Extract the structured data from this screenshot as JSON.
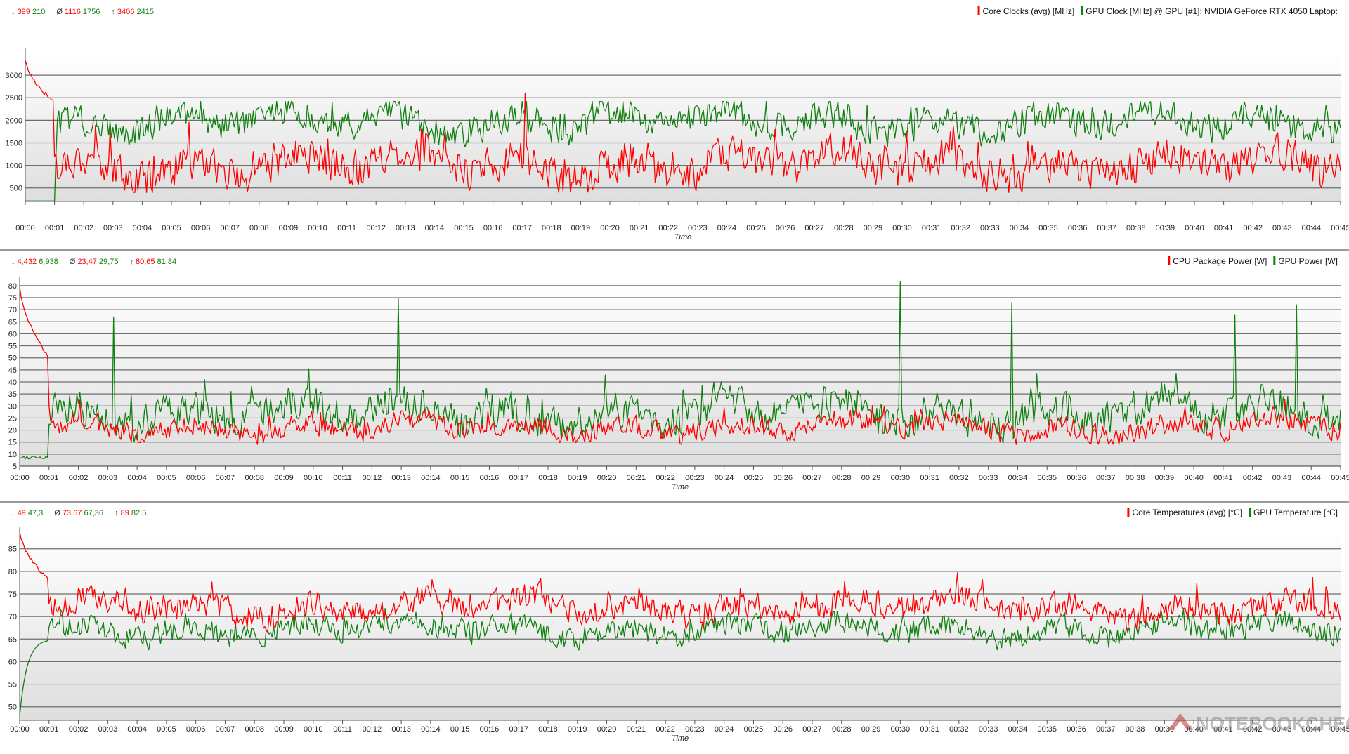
{
  "colors": {
    "red": "#ff0000",
    "green": "#108010",
    "grid": "#6e6e6e",
    "separator": "#9a9a9a"
  },
  "watermark": "NOTEBOOKCHECK",
  "chart_data": [
    {
      "type": "line",
      "xlabel": "Time",
      "ylabel": "",
      "xlim": [
        0,
        45
      ],
      "ylim": [
        200,
        3500
      ],
      "y_ticks": [
        500,
        1000,
        1500,
        2000,
        2500,
        3000
      ],
      "x_ticks": [
        "00:00",
        "00:01",
        "00:02",
        "00:03",
        "00:04",
        "00:05",
        "00:06",
        "00:07",
        "00:08",
        "00:09",
        "00:10",
        "00:11",
        "00:12",
        "00:13",
        "00:14",
        "00:15",
        "00:16",
        "00:17",
        "00:18",
        "00:19",
        "00:20",
        "00:21",
        "00:22",
        "00:23",
        "00:24",
        "00:25",
        "00:26",
        "00:27",
        "00:28",
        "00:29",
        "00:30",
        "00:31",
        "00:32",
        "00:33",
        "00:34",
        "00:35",
        "00:36",
        "00:37",
        "00:38",
        "00:39",
        "00:40",
        "00:41",
        "00:42",
        "00:43",
        "00:44",
        "00:45"
      ],
      "stats": {
        "min": [
          "399",
          "210"
        ],
        "avg": [
          "1116",
          "1756"
        ],
        "max": [
          "3406",
          "2415"
        ]
      },
      "series": [
        {
          "name": "Core Clocks (avg) [MHz]",
          "color": "red",
          "start": 3350,
          "decay_to": 2400,
          "base": 1000,
          "spread": 550,
          "min": 399,
          "max": 2600,
          "spikes": [
            [
              17.1,
              2600
            ]
          ]
        },
        {
          "name": "GPU Clock [MHz] @ GPU [#1]: NVIDIA GeForce RTX 4050 Laptop:",
          "color": "green",
          "start": 210,
          "idle_until": 1.05,
          "base": 1950,
          "spread": 450,
          "min": 450,
          "max": 2415
        }
      ]
    },
    {
      "type": "line",
      "xlabel": "Time",
      "ylabel": "",
      "xlim": [
        0,
        45
      ],
      "ylim": [
        5,
        82
      ],
      "y_ticks": [
        5,
        10,
        15,
        20,
        25,
        30,
        35,
        40,
        45,
        50,
        55,
        60,
        65,
        70,
        75,
        80
      ],
      "x_ticks": [
        "00:00",
        "00:01",
        "00:02",
        "00:03",
        "00:04",
        "00:05",
        "00:06",
        "00:07",
        "00:08",
        "00:09",
        "00:10",
        "00:11",
        "00:12",
        "00:13",
        "00:14",
        "00:15",
        "00:16",
        "00:17",
        "00:18",
        "00:19",
        "00:20",
        "00:21",
        "00:22",
        "00:23",
        "00:24",
        "00:25",
        "00:26",
        "00:27",
        "00:28",
        "00:29",
        "00:30",
        "00:31",
        "00:32",
        "00:33",
        "00:34",
        "00:35",
        "00:36",
        "00:37",
        "00:38",
        "00:39",
        "00:40",
        "00:41",
        "00:42",
        "00:43",
        "00:44",
        "00:45"
      ],
      "stats": {
        "min": [
          "4,432",
          "6,938"
        ],
        "avg": [
          "23,47",
          "29,75"
        ],
        "max": [
          "80,65",
          "81,84"
        ]
      },
      "series": [
        {
          "name": "CPU Package Power [W]",
          "color": "red",
          "start": 80,
          "decay_to": 50,
          "base": 21,
          "spread": 6,
          "min": 14,
          "max": 48
        },
        {
          "name": "GPU Power [W]",
          "color": "green",
          "start": 8,
          "idle_until": 1.0,
          "base": 27,
          "spread": 10,
          "min": 14,
          "max": 81.8,
          "spikes": [
            [
              12.9,
              75
            ],
            [
              30.0,
              81.8
            ],
            [
              33.8,
              73
            ],
            [
              43.5,
              72
            ],
            [
              3.2,
              67
            ],
            [
              41.4,
              68
            ]
          ]
        }
      ]
    },
    {
      "type": "line",
      "xlabel": "Time",
      "ylabel": "",
      "xlim": [
        0,
        45
      ],
      "ylim": [
        47,
        89
      ],
      "y_ticks": [
        50,
        55,
        60,
        65,
        70,
        75,
        80,
        85
      ],
      "x_ticks": [
        "00:00",
        "00:01",
        "00:02",
        "00:03",
        "00:04",
        "00:05",
        "00:06",
        "00:07",
        "00:08",
        "00:09",
        "00:10",
        "00:11",
        "00:12",
        "00:13",
        "00:14",
        "00:15",
        "00:16",
        "00:17",
        "00:18",
        "00:19",
        "00:20",
        "00:21",
        "00:22",
        "00:23",
        "00:24",
        "00:25",
        "00:26",
        "00:27",
        "00:28",
        "00:29",
        "00:30",
        "00:31",
        "00:32",
        "00:33",
        "00:34",
        "00:35",
        "00:36",
        "00:37",
        "00:38",
        "00:39",
        "00:40",
        "00:41",
        "00:42",
        "00:43",
        "00:44",
        "00:45"
      ],
      "stats": {
        "min": [
          "49",
          "47,3"
        ],
        "avg": [
          "73,67",
          "67,36"
        ],
        "max": [
          "89",
          "82,5"
        ]
      },
      "series": [
        {
          "name": "Core Temperatures (avg) [°C]",
          "color": "red",
          "start": 89,
          "decay_to": 78,
          "base": 72,
          "spread": 4,
          "min": 65,
          "max": 89
        },
        {
          "name": "GPU Temperature [°C]",
          "color": "green",
          "start": 48,
          "warm_to": 65,
          "idle_until": 1.0,
          "base": 67,
          "spread": 3.5,
          "min": 61,
          "max": 82.5
        }
      ]
    }
  ]
}
